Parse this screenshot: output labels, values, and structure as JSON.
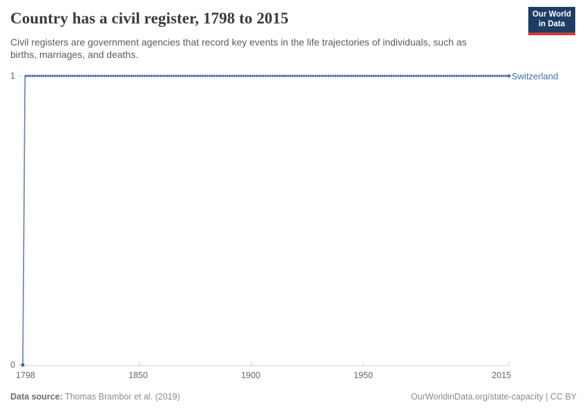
{
  "header": {
    "title": "Country has a civil register, 1798 to 2015",
    "subtitle_lines": [
      "Civil registers are government agencies that record key events in the life trajectories of individuals, such as",
      "births, marriages, and deaths."
    ],
    "logo": {
      "line1": "Our World",
      "line2": "in Data"
    }
  },
  "chart_data": {
    "type": "line",
    "title": "Country has a civil register, 1798 to 2015",
    "xlabel": "",
    "ylabel": "",
    "xlim": [
      1798,
      2015
    ],
    "ylim": [
      0,
      1
    ],
    "x_ticks": [
      1798,
      1850,
      1900,
      1950,
      2015
    ],
    "y_ticks": [
      0,
      1
    ],
    "grid": false,
    "legend_position": "right-of-line-end",
    "series": [
      {
        "name": "Switzerland",
        "color": "#44639e",
        "line_light_color": "#6a84b4",
        "marker_every_year": true,
        "points": [
          [
            1798,
            0
          ],
          [
            1799,
            1
          ],
          [
            2015,
            1
          ]
        ],
        "note": "Value is 0 in 1798 and 1 from 1799 through 2015; yearly square markers along the line"
      }
    ],
    "colors": {
      "axis": "#cccccc",
      "tick_label": "#666666",
      "entity_label": "#3f6cb2"
    }
  },
  "footer": {
    "source_label": "Data source:",
    "source_value": "Thomas Brambor et al. (2019)",
    "attribution": "OurWorldinData.org/state-capacity | CC BY"
  }
}
